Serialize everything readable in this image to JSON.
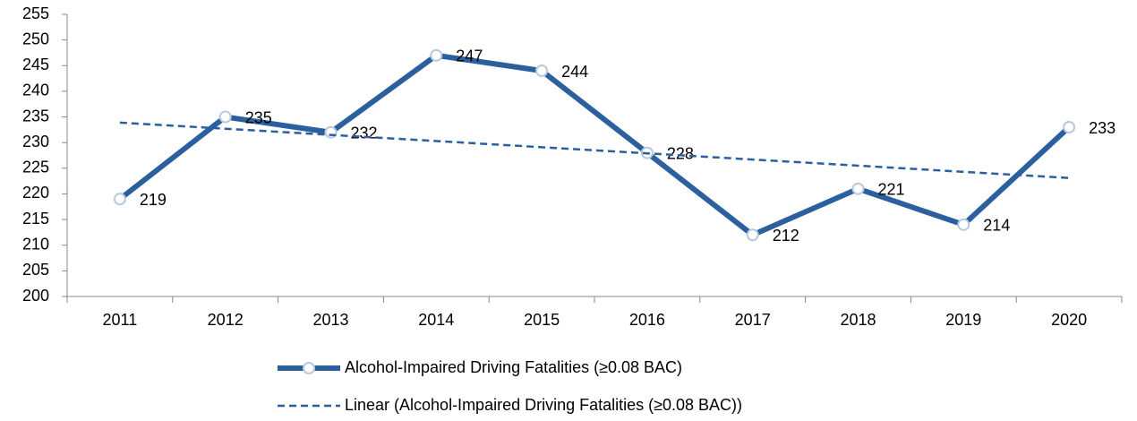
{
  "chart_data": {
    "type": "line",
    "categories": [
      "2011",
      "2012",
      "2013",
      "2014",
      "2015",
      "2016",
      "2017",
      "2018",
      "2019",
      "2020"
    ],
    "series": [
      {
        "name": "Alcohol-Impaired Driving Fatalities (≥0.08 BAC)",
        "color": "#2c5f9e",
        "style": "solid",
        "markers": true,
        "data_labels": true,
        "values": [
          219,
          235,
          232,
          247,
          244,
          228,
          212,
          221,
          214,
          233
        ]
      },
      {
        "name": "Linear (Alcohol-Impaired Driving Fatalities (≥0.08 BAC))",
        "color": "#2c5f9e",
        "style": "dashed",
        "markers": false,
        "data_labels": false,
        "values": [
          233.9,
          232.7,
          231.5,
          230.3,
          229.1,
          227.9,
          226.7,
          225.5,
          224.3,
          223.1
        ]
      }
    ],
    "ylim": [
      200,
      255
    ],
    "yticks": [
      200,
      205,
      210,
      215,
      220,
      225,
      230,
      235,
      240,
      245,
      250,
      255
    ],
    "grid": false,
    "legend": "bottom"
  }
}
